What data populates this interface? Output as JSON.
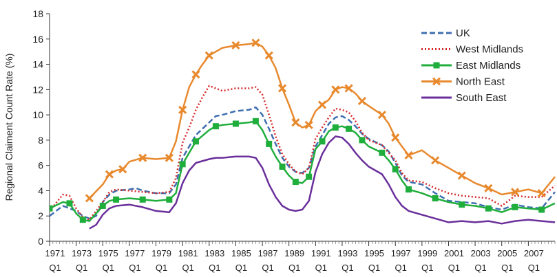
{
  "chart_data": {
    "type": "line",
    "title": "",
    "xlabel": "",
    "ylabel": "Regional Claiment Count Rate (%)",
    "ylim": [
      0,
      18
    ],
    "xlim": [
      1971,
      2009
    ],
    "yticks": [
      0,
      2,
      4,
      6,
      8,
      10,
      12,
      14,
      16,
      18
    ],
    "xtick_years": [
      "1971",
      "1973",
      "1975",
      "1977",
      "1979",
      "1981",
      "1983",
      "1985",
      "1987",
      "1989",
      "1991",
      "1993",
      "1995",
      "1997",
      "1999",
      "2001",
      "2003",
      "2005",
      "2007"
    ],
    "xtick_quarter": "Q1",
    "grid": false,
    "legend_position": "top-right",
    "series": [
      {
        "name": "UK",
        "color": "#3f6eb0",
        "dash": "dashed",
        "marker": "none",
        "points": [
          [
            1971,
            2.0
          ],
          [
            1972,
            2.8
          ],
          [
            1973,
            2.4
          ],
          [
            1973.5,
            2.0
          ],
          [
            1974,
            1.8
          ],
          [
            1974.5,
            2.0
          ],
          [
            1975,
            3.1
          ],
          [
            1975.5,
            3.7
          ],
          [
            1976,
            4.0
          ],
          [
            1977,
            4.1
          ],
          [
            1977.5,
            4.2
          ],
          [
            1978,
            4.0
          ],
          [
            1979,
            3.8
          ],
          [
            1980,
            3.8
          ],
          [
            1980.5,
            4.5
          ],
          [
            1981,
            6.6
          ],
          [
            1981.5,
            7.5
          ],
          [
            1982,
            8.4
          ],
          [
            1983,
            9.4
          ],
          [
            1983.5,
            9.9
          ],
          [
            1984,
            10.0
          ],
          [
            1985,
            10.3
          ],
          [
            1986,
            10.4
          ],
          [
            1986.5,
            10.6
          ],
          [
            1987,
            10.0
          ],
          [
            1987.5,
            8.9
          ],
          [
            1988,
            7.7
          ],
          [
            1988.5,
            6.6
          ],
          [
            1989,
            5.9
          ],
          [
            1989.5,
            5.5
          ],
          [
            1990,
            5.4
          ],
          [
            1990.5,
            5.8
          ],
          [
            1991,
            7.5
          ],
          [
            1991.5,
            8.4
          ],
          [
            1992,
            9.3
          ],
          [
            1992.5,
            9.8
          ],
          [
            1993,
            9.9
          ],
          [
            1993.5,
            9.6
          ],
          [
            1994,
            9.1
          ],
          [
            1994.5,
            8.5
          ],
          [
            1995,
            8.1
          ],
          [
            1996,
            7.6
          ],
          [
            1996.5,
            7.1
          ],
          [
            1997,
            6.2
          ],
          [
            1997.5,
            5.2
          ],
          [
            1998,
            4.7
          ],
          [
            1999,
            4.5
          ],
          [
            2000,
            3.8
          ],
          [
            2001,
            3.2
          ],
          [
            2002,
            3.1
          ],
          [
            2003,
            3.0
          ],
          [
            2004,
            2.7
          ],
          [
            2005,
            2.5
          ],
          [
            2006,
            2.9
          ],
          [
            2007,
            2.7
          ],
          [
            2008,
            2.6
          ],
          [
            2009,
            3.9
          ]
        ]
      },
      {
        "name": "West Midlands",
        "color": "#d62a2a",
        "dash": "dotted",
        "marker": "none",
        "points": [
          [
            1971,
            2.4
          ],
          [
            1972,
            3.7
          ],
          [
            1972.5,
            3.6
          ],
          [
            1973,
            2.6
          ],
          [
            1973.5,
            1.9
          ],
          [
            1974,
            1.7
          ],
          [
            1975,
            3.1
          ],
          [
            1975.5,
            3.9
          ],
          [
            1976,
            4.1
          ],
          [
            1977,
            4.0
          ],
          [
            1978,
            3.9
          ],
          [
            1979,
            3.8
          ],
          [
            1980,
            3.9
          ],
          [
            1980.5,
            5.0
          ],
          [
            1981,
            7.8
          ],
          [
            1981.5,
            9.0
          ],
          [
            1982,
            10.4
          ],
          [
            1982.5,
            11.4
          ],
          [
            1983,
            12.3
          ],
          [
            1983.5,
            12.1
          ],
          [
            1984,
            11.9
          ],
          [
            1985,
            12.1
          ],
          [
            1986,
            12.1
          ],
          [
            1986.5,
            12.2
          ],
          [
            1987,
            11.6
          ],
          [
            1987.5,
            10.0
          ],
          [
            1988,
            8.3
          ],
          [
            1988.5,
            6.9
          ],
          [
            1989,
            6.1
          ],
          [
            1989.5,
            5.5
          ],
          [
            1990,
            5.3
          ],
          [
            1990.5,
            5.8
          ],
          [
            1991,
            8.1
          ],
          [
            1991.5,
            9.0
          ],
          [
            1992,
            9.8
          ],
          [
            1992.5,
            10.5
          ],
          [
            1993,
            10.4
          ],
          [
            1993.5,
            10.2
          ],
          [
            1994,
            9.5
          ],
          [
            1994.5,
            8.6
          ],
          [
            1995,
            8.0
          ],
          [
            1996,
            7.6
          ],
          [
            1996.5,
            7.0
          ],
          [
            1997,
            6.4
          ],
          [
            1997.5,
            5.4
          ],
          [
            1998,
            4.8
          ],
          [
            1999,
            4.7
          ],
          [
            2000,
            4.2
          ],
          [
            2001,
            3.8
          ],
          [
            2002,
            3.6
          ],
          [
            2003,
            3.5
          ],
          [
            2004,
            3.4
          ],
          [
            2005,
            2.8
          ],
          [
            2006,
            3.6
          ],
          [
            2007,
            3.5
          ],
          [
            2008,
            3.5
          ],
          [
            2009,
            4.4
          ]
        ]
      },
      {
        "name": "East Midlands",
        "color": "#1fae3c",
        "dash": "solid",
        "marker": "square",
        "points": [
          [
            1971,
            2.6
          ],
          [
            1972,
            3.1
          ],
          [
            1972.5,
            3.0
          ],
          [
            1973,
            2.2
          ],
          [
            1973.5,
            1.7
          ],
          [
            1974,
            1.6
          ],
          [
            1975,
            2.8
          ],
          [
            1975.5,
            3.2
          ],
          [
            1976,
            3.3
          ],
          [
            1977,
            3.4
          ],
          [
            1978,
            3.3
          ],
          [
            1979,
            3.2
          ],
          [
            1980,
            3.3
          ],
          [
            1980.5,
            3.8
          ],
          [
            1981,
            6.1
          ],
          [
            1981.5,
            7.0
          ],
          [
            1982,
            7.9
          ],
          [
            1983,
            8.8
          ],
          [
            1983.5,
            9.1
          ],
          [
            1984,
            9.2
          ],
          [
            1985,
            9.3
          ],
          [
            1986,
            9.4
          ],
          [
            1986.5,
            9.5
          ],
          [
            1987,
            8.8
          ],
          [
            1987.5,
            7.7
          ],
          [
            1988,
            6.7
          ],
          [
            1988.5,
            5.9
          ],
          [
            1989,
            5.2
          ],
          [
            1989.5,
            4.7
          ],
          [
            1990,
            4.6
          ],
          [
            1990.5,
            5.1
          ],
          [
            1991,
            7.3
          ],
          [
            1991.5,
            7.9
          ],
          [
            1992,
            8.7
          ],
          [
            1992.5,
            9.0
          ],
          [
            1993,
            9.1
          ],
          [
            1993.5,
            8.9
          ],
          [
            1994,
            8.6
          ],
          [
            1994.5,
            8.0
          ],
          [
            1995,
            7.5
          ],
          [
            1996,
            7.0
          ],
          [
            1996.5,
            6.4
          ],
          [
            1997,
            5.7
          ],
          [
            1997.5,
            4.8
          ],
          [
            1998,
            4.1
          ],
          [
            1999,
            3.8
          ],
          [
            2000,
            3.4
          ],
          [
            2001,
            3.1
          ],
          [
            2002,
            2.9
          ],
          [
            2003,
            2.8
          ],
          [
            2004,
            2.6
          ],
          [
            2005,
            2.3
          ],
          [
            2006,
            2.7
          ],
          [
            2007,
            2.6
          ],
          [
            2008,
            2.5
          ],
          [
            2009,
            3.0
          ]
        ]
      },
      {
        "name": "North East",
        "color": "#e8892d",
        "dash": "solid",
        "marker": "cross",
        "points": [
          [
            1974,
            3.4
          ],
          [
            1975,
            4.5
          ],
          [
            1975.5,
            5.3
          ],
          [
            1976,
            5.6
          ],
          [
            1976.5,
            5.7
          ],
          [
            1977,
            6.3
          ],
          [
            1978,
            6.6
          ],
          [
            1979,
            6.5
          ],
          [
            1980,
            6.6
          ],
          [
            1980.5,
            7.9
          ],
          [
            1981,
            10.4
          ],
          [
            1981.5,
            12.2
          ],
          [
            1982,
            13.2
          ],
          [
            1982.5,
            14.0
          ],
          [
            1983,
            14.7
          ],
          [
            1984,
            15.3
          ],
          [
            1985,
            15.5
          ],
          [
            1986,
            15.6
          ],
          [
            1986.5,
            15.7
          ],
          [
            1987,
            15.4
          ],
          [
            1987.5,
            14.7
          ],
          [
            1988,
            13.7
          ],
          [
            1988.5,
            12.1
          ],
          [
            1989,
            10.8
          ],
          [
            1989.5,
            9.4
          ],
          [
            1990,
            9.0
          ],
          [
            1990.5,
            9.2
          ],
          [
            1991,
            10.3
          ],
          [
            1991.5,
            10.8
          ],
          [
            1992,
            11.2
          ],
          [
            1992.5,
            12.0
          ],
          [
            1993,
            12.2
          ],
          [
            1993.5,
            12.1
          ],
          [
            1994,
            11.7
          ],
          [
            1994.5,
            11.1
          ],
          [
            1995,
            10.7
          ],
          [
            1996,
            10.0
          ],
          [
            1996.5,
            9.3
          ],
          [
            1997,
            8.2
          ],
          [
            1997.5,
            7.5
          ],
          [
            1998,
            6.8
          ],
          [
            1999,
            7.2
          ],
          [
            2000,
            6.4
          ],
          [
            2001,
            5.8
          ],
          [
            2002,
            5.2
          ],
          [
            2003,
            4.6
          ],
          [
            2004,
            4.2
          ],
          [
            2005,
            3.7
          ],
          [
            2006,
            3.9
          ],
          [
            2007,
            4.1
          ],
          [
            2008,
            3.8
          ],
          [
            2009,
            5.1
          ]
        ]
      },
      {
        "name": "South East",
        "color": "#6a2f9b",
        "dash": "solid",
        "marker": "none",
        "points": [
          [
            1974,
            1.0
          ],
          [
            1974.5,
            1.3
          ],
          [
            1975,
            2.1
          ],
          [
            1975.5,
            2.6
          ],
          [
            1976,
            2.8
          ],
          [
            1977,
            2.9
          ],
          [
            1978,
            2.7
          ],
          [
            1979,
            2.4
          ],
          [
            1980,
            2.3
          ],
          [
            1980.5,
            3.0
          ],
          [
            1981,
            4.6
          ],
          [
            1981.5,
            5.6
          ],
          [
            1982,
            6.2
          ],
          [
            1983,
            6.5
          ],
          [
            1983.5,
            6.6
          ],
          [
            1984,
            6.6
          ],
          [
            1985,
            6.7
          ],
          [
            1986,
            6.7
          ],
          [
            1986.5,
            6.6
          ],
          [
            1987,
            5.8
          ],
          [
            1987.5,
            4.5
          ],
          [
            1988,
            3.5
          ],
          [
            1988.5,
            2.8
          ],
          [
            1989,
            2.5
          ],
          [
            1989.5,
            2.4
          ],
          [
            1990,
            2.5
          ],
          [
            1990.5,
            3.2
          ],
          [
            1991,
            5.5
          ],
          [
            1991.5,
            6.9
          ],
          [
            1992,
            7.8
          ],
          [
            1992.5,
            8.3
          ],
          [
            1993,
            8.2
          ],
          [
            1993.5,
            7.7
          ],
          [
            1994,
            7.0
          ],
          [
            1994.5,
            6.4
          ],
          [
            1995,
            5.9
          ],
          [
            1996,
            5.3
          ],
          [
            1996.5,
            4.5
          ],
          [
            1997,
            3.5
          ],
          [
            1997.5,
            2.8
          ],
          [
            1998,
            2.4
          ],
          [
            1999,
            2.1
          ],
          [
            2000,
            1.8
          ],
          [
            2001,
            1.5
          ],
          [
            2002,
            1.6
          ],
          [
            2003,
            1.5
          ],
          [
            2004,
            1.6
          ],
          [
            2005,
            1.4
          ],
          [
            2006,
            1.6
          ],
          [
            2007,
            1.7
          ],
          [
            2008,
            1.6
          ],
          [
            2009,
            1.5
          ]
        ]
      }
    ]
  }
}
